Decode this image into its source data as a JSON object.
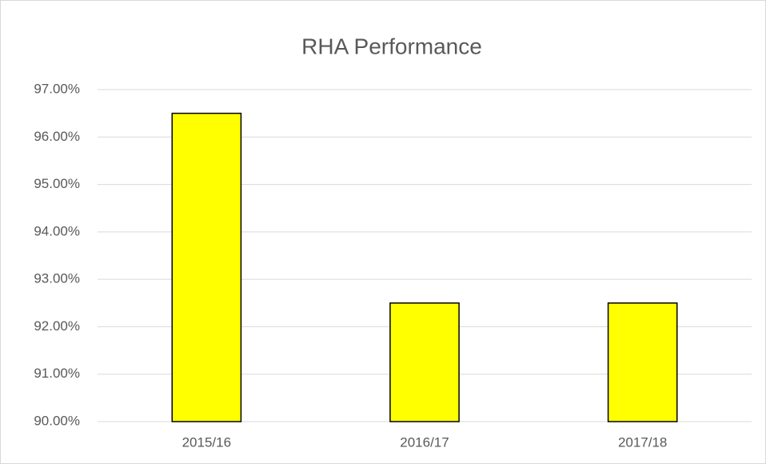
{
  "chart_data": {
    "type": "bar",
    "title": "RHA Performance",
    "categories": [
      "2015/16",
      "2016/17",
      "2017/18"
    ],
    "values": [
      96.5,
      92.5,
      92.5
    ],
    "color": "#ffff00",
    "ylim": [
      90,
      97
    ],
    "yticks": [
      {
        "value": 90,
        "label": "90.00%"
      },
      {
        "value": 91,
        "label": "91.00%"
      },
      {
        "value": 92,
        "label": "92.00%"
      },
      {
        "value": 93,
        "label": "93.00%"
      },
      {
        "value": 94,
        "label": "94.00%"
      },
      {
        "value": 95,
        "label": "95.00%"
      },
      {
        "value": 96,
        "label": "96.00%"
      },
      {
        "value": 97,
        "label": "97.00%"
      }
    ],
    "grid": true
  }
}
